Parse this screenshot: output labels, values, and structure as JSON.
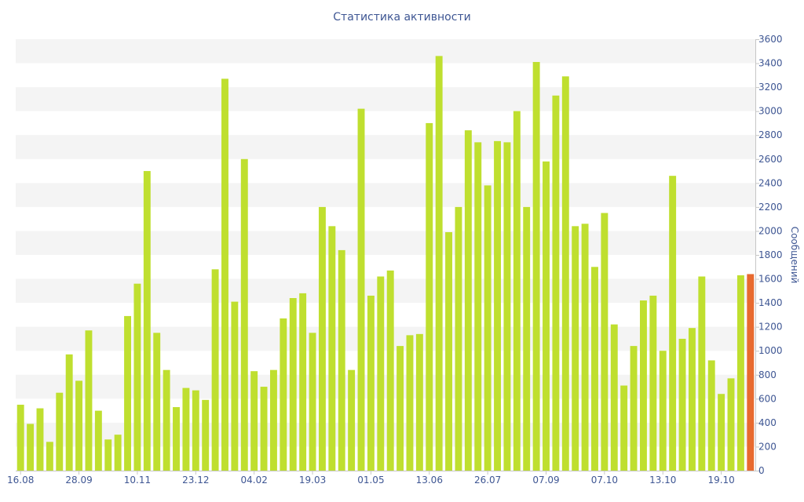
{
  "chart_data": {
    "type": "bar",
    "title": "Статистика активности",
    "ylabel": "Сообщений",
    "ylim": [
      0,
      3600
    ],
    "yticks": [
      0,
      200,
      400,
      600,
      800,
      1000,
      1200,
      1400,
      1600,
      1800,
      2000,
      2200,
      2400,
      2600,
      2800,
      3000,
      3200,
      3400,
      3600
    ],
    "x_tick_labels": [
      {
        "label": "16.08",
        "index": 0
      },
      {
        "label": "28.09",
        "index": 6
      },
      {
        "label": "10.11",
        "index": 12
      },
      {
        "label": "23.12",
        "index": 18
      },
      {
        "label": "04.02",
        "index": 24
      },
      {
        "label": "19.03",
        "index": 30
      },
      {
        "label": "01.05",
        "index": 36
      },
      {
        "label": "13.06",
        "index": 42
      },
      {
        "label": "26.07",
        "index": 48
      },
      {
        "label": "07.09",
        "index": 54
      },
      {
        "label": "07.10",
        "index": 60
      },
      {
        "label": "13.10",
        "index": 66
      },
      {
        "label": "19.10",
        "index": 72
      }
    ],
    "values": [
      550,
      390,
      520,
      240,
      650,
      970,
      750,
      1170,
      500,
      260,
      300,
      1290,
      1560,
      2500,
      1150,
      840,
      530,
      690,
      670,
      590,
      1680,
      3270,
      1410,
      2600,
      830,
      700,
      840,
      1270,
      1440,
      1480,
      1150,
      2200,
      2040,
      1840,
      840,
      3020,
      1460,
      1620,
      1670,
      1040,
      1130,
      1140,
      2900,
      3460,
      1990,
      2200,
      2840,
      2740,
      2380,
      2750,
      2740,
      3000,
      2200,
      3410,
      2580,
      3130,
      3290,
      2040,
      2060,
      1700,
      2150,
      1220,
      710,
      1040,
      1420,
      1460,
      1000,
      2460,
      1100,
      1190,
      1620,
      920,
      640,
      770,
      1630,
      1640
    ],
    "highlight_index": 75,
    "colors": {
      "bar": "#bfdf2f",
      "highlight": "#e86a2f",
      "band": "#f4f4f4",
      "text": "#3e5693",
      "axis": "#c6c6c6"
    }
  }
}
